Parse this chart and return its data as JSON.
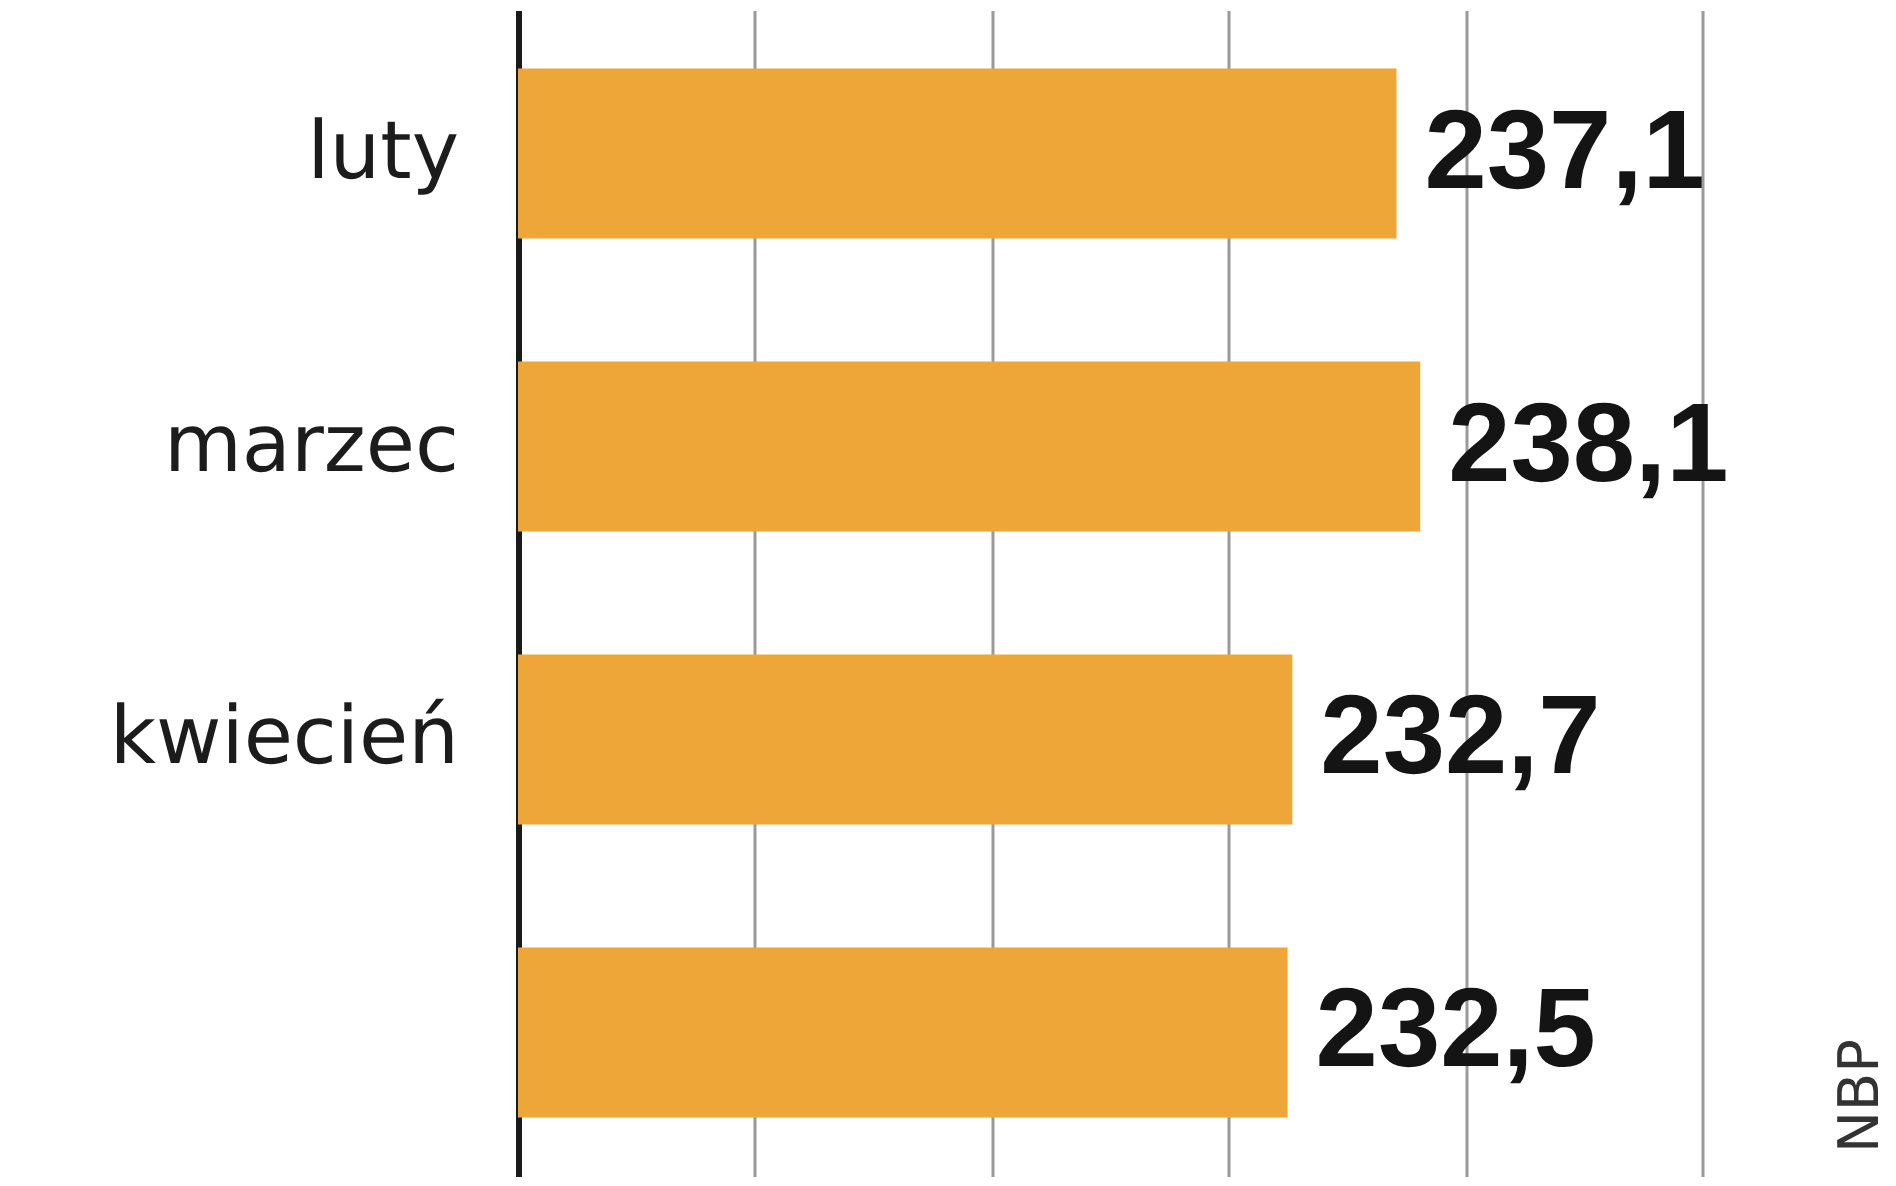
{
  "chart_data": {
    "type": "bar",
    "orientation": "horizontal",
    "categories": [
      "luty",
      "marzec",
      "kwiecień",
      null
    ],
    "values": [
      237.1,
      238.1,
      232.7,
      232.5
    ],
    "value_labels": [
      "237,1",
      "238,1",
      "232,7",
      "232,5"
    ],
    "color": "#eea638",
    "xlim": [
      200,
      250
    ],
    "xticks": [
      {
        "value": 210,
        "label": null
      },
      {
        "value": 220,
        "label": null
      },
      {
        "value": 230,
        "label": null
      },
      {
        "value": 240,
        "label": null
      },
      {
        "value": 250,
        "label": null
      }
    ],
    "grid": "x",
    "tick_labels": "y",
    "annotations": [
      "NBP"
    ]
  }
}
